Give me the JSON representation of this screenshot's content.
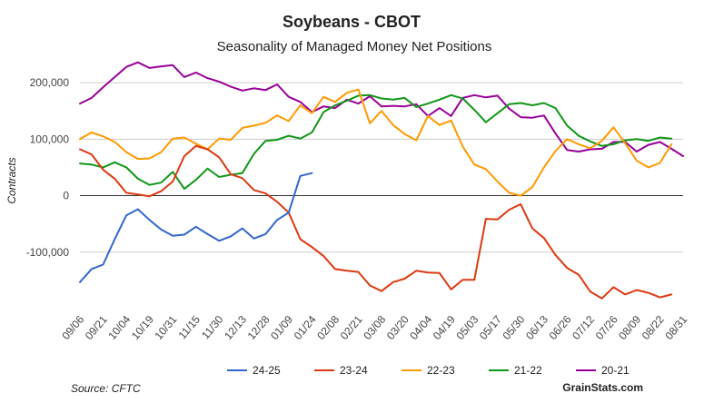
{
  "chart_data": {
    "type": "line",
    "title": "Soybeans - CBOT",
    "subtitle": "Seasonality of Managed Money Net Positions",
    "xlabel": "",
    "ylabel": "Contracts",
    "ylim": [
      -200000,
      250000
    ],
    "yticks": [
      -100000,
      0,
      100000,
      200000
    ],
    "ytick_labels": [
      "-100,000",
      "0",
      "100,000",
      "200,000"
    ],
    "grid": true,
    "legend_position": "bottom",
    "x_tick_labels": [
      "09/06",
      "09/21",
      "10/04",
      "10/19",
      "10/31",
      "11/15",
      "11/30",
      "12/13",
      "12/28",
      "01/09",
      "01/24",
      "02/08",
      "02/21",
      "03/08",
      "03/20",
      "04/04",
      "04/19",
      "05/03",
      "05/17",
      "05/30",
      "06/13",
      "06/26",
      "07/12",
      "07/26",
      "08/09",
      "08/22",
      "08/31"
    ],
    "x_tick_weeks": [
      0,
      2,
      4,
      6,
      8,
      10,
      12,
      14,
      16,
      18,
      20,
      22,
      24,
      26,
      28,
      30,
      32,
      34,
      36,
      38,
      40,
      42,
      44,
      46,
      48,
      50,
      52
    ],
    "n_weeks": 53,
    "series": [
      {
        "name": "24-25",
        "color": "#3366cc",
        "values": [
          -153000,
          -130000,
          -122000,
          -77000,
          -35000,
          -24000,
          -43000,
          -60000,
          -71000,
          -69000,
          -55000,
          -68000,
          -80000,
          -72000,
          -58000,
          -76000,
          -68000,
          -43000,
          -30000,
          35000,
          40000
        ]
      },
      {
        "name": "23-24",
        "color": "#dc3912",
        "values": [
          82000,
          73000,
          46000,
          30000,
          5000,
          2000,
          -1000,
          8000,
          25000,
          70000,
          88000,
          82000,
          68000,
          38000,
          31000,
          10000,
          4000,
          -11000,
          -30000,
          -77000,
          -91000,
          -107000,
          -130000,
          -133000,
          -135000,
          -159000,
          -169000,
          -153000,
          -147000,
          -133000,
          -136000,
          -137000,
          -166000,
          -149000,
          -149000,
          -41000,
          -42000,
          -25000,
          -15000,
          -58000,
          -75000,
          -105000,
          -128000,
          -140000,
          -170000,
          -182000,
          -162000,
          -175000,
          -167000,
          -172000,
          -180000,
          -175000
        ]
      },
      {
        "name": "22-23",
        "color": "#ff9900",
        "values": [
          100000,
          112000,
          105000,
          95000,
          77000,
          65000,
          66000,
          77000,
          101000,
          103000,
          92000,
          82000,
          101000,
          99000,
          120000,
          124000,
          129000,
          142000,
          132000,
          160000,
          146000,
          175000,
          166000,
          182000,
          188000,
          128000,
          150000,
          125000,
          109000,
          98000,
          141000,
          125000,
          133000,
          87000,
          55000,
          47000,
          25000,
          5000,
          0,
          15000,
          50000,
          79000,
          100000,
          91000,
          84000,
          97000,
          121000,
          93000,
          62000,
          50000,
          58000,
          91000
        ]
      },
      {
        "name": "21-22",
        "color": "#109618",
        "values": [
          57000,
          55000,
          50000,
          59000,
          50000,
          30000,
          19000,
          23000,
          42000,
          12000,
          28000,
          48000,
          33000,
          37000,
          40000,
          74000,
          97000,
          99000,
          106000,
          101000,
          112000,
          148000,
          160000,
          168000,
          177000,
          178000,
          172000,
          170000,
          173000,
          157000,
          163000,
          170000,
          178000,
          172000,
          152000,
          130000,
          146000,
          162000,
          164000,
          160000,
          164000,
          155000,
          124000,
          106000,
          96000,
          88000,
          91000,
          98000,
          100000,
          97000,
          103000,
          101000
        ]
      },
      {
        "name": "20-21",
        "color": "#990099",
        "values": [
          163000,
          173000,
          192000,
          210000,
          228000,
          236000,
          226000,
          229000,
          231000,
          210000,
          218000,
          208000,
          202000,
          193000,
          186000,
          190000,
          187000,
          197000,
          175000,
          166000,
          148000,
          158000,
          155000,
          170000,
          163000,
          176000,
          158000,
          159000,
          158000,
          162000,
          141000,
          155000,
          141000,
          173000,
          178000,
          174000,
          177000,
          154000,
          139000,
          138000,
          142000,
          110000,
          81000,
          78000,
          82000,
          83000,
          95000,
          95000,
          78000,
          90000,
          95000,
          83000,
          70000
        ]
      }
    ]
  },
  "footer": {
    "source": "Source: CFTC",
    "brand": "GrainStats.com"
  }
}
